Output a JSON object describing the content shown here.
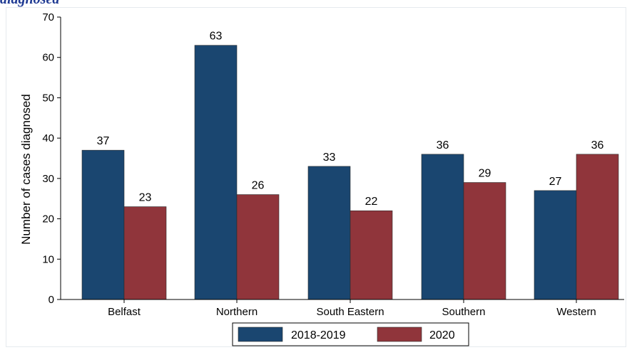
{
  "header": {
    "title_fragment": "diagnosed"
  },
  "chart_data": {
    "type": "bar",
    "categories": [
      "Belfast",
      "Northern",
      "South Eastern",
      "Southern",
      "Western"
    ],
    "series": [
      {
        "name": "2018-2019",
        "values": [
          37,
          63,
          33,
          36,
          27
        ],
        "color": "#1a4670"
      },
      {
        "name": "2020",
        "values": [
          23,
          26,
          22,
          29,
          36
        ],
        "color": "#90353b"
      }
    ],
    "ylabel": "Number of cases diagnosed",
    "xlabel": "",
    "ylim": [
      0,
      70
    ],
    "yticks": [
      0,
      10,
      20,
      30,
      40,
      50,
      60,
      70
    ],
    "grid": false,
    "legend": "bottom",
    "show_data_labels": true
  }
}
